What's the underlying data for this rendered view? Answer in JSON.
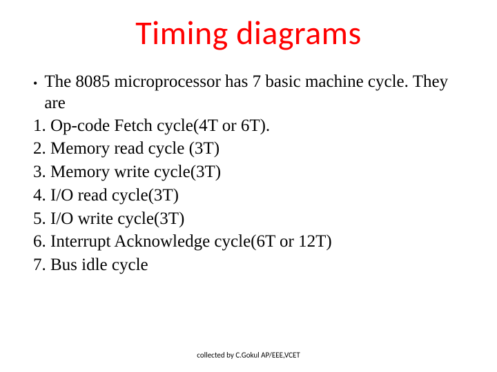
{
  "title": {
    "text": "Timing diagrams",
    "color": "#ff0000",
    "fontsize": 48
  },
  "intro": {
    "bullet": "•",
    "text": "The 8085 microprocessor has 7 basic machine cycle. They are",
    "color": "#000000",
    "fontsize": 25,
    "lineheight": 1.25
  },
  "items": [
    "1. Op-code Fetch cycle(4T or 6T).",
    "2. Memory read cycle (3T)",
    "3. Memory write cycle(3T)",
    "4. I/O read cycle(3T)",
    "5. I/O write cycle(3T)",
    "6. Interrupt Acknowledge cycle(6T or 12T)",
    "7. Bus idle cycle"
  ],
  "list_style": {
    "color": "#000000",
    "fontsize": 25,
    "lineheight": 1.35
  },
  "footer": {
    "text": "collected by C.Gokul AP/EEE,VCET",
    "color": "#000000",
    "fontsize": 11
  }
}
